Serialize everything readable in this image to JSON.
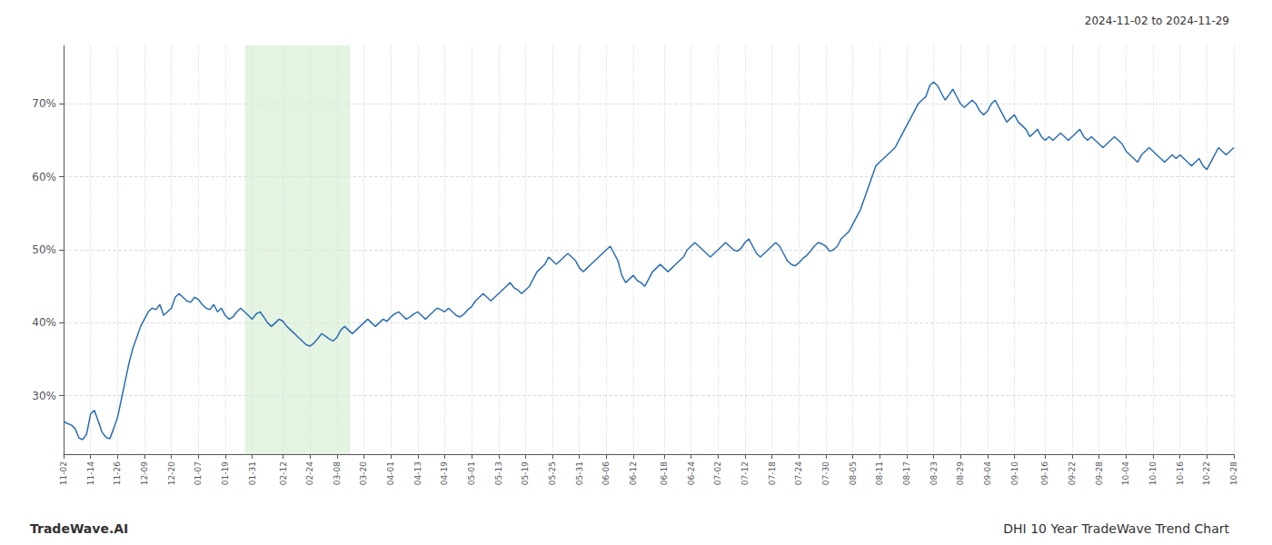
{
  "chart_data": {
    "type": "line",
    "title": "DHI 10 Year TradeWave Trend Chart",
    "subtitle": "2024-11-02 to 2024-11-29",
    "annotations": [
      "TradeWave.AI"
    ],
    "color": "#2a6db5",
    "grid": true,
    "ylim": [
      22,
      78
    ],
    "yticks": [
      {
        "value": 30,
        "label": "30%"
      },
      {
        "value": 40,
        "label": "40%"
      },
      {
        "value": 50,
        "label": "50%"
      },
      {
        "value": 60,
        "label": "60%"
      },
      {
        "value": 70,
        "label": "70%"
      }
    ],
    "highlight": {
      "x_start": 47.12,
      "x_end": 74.48,
      "color": "#d6ecd2"
    },
    "categories": [
      "11-02",
      null,
      null,
      null,
      null,
      null,
      null,
      "11-14",
      null,
      null,
      null,
      null,
      null,
      null,
      "11-26",
      null,
      null,
      null,
      null,
      null,
      null,
      "12-09",
      null,
      null,
      null,
      null,
      null,
      null,
      "12-20",
      null,
      null,
      null,
      null,
      null,
      null,
      "01-07",
      null,
      null,
      null,
      null,
      null,
      null,
      "01-19",
      null,
      null,
      null,
      null,
      null,
      null,
      "01-31",
      null,
      null,
      null,
      null,
      null,
      null,
      null,
      "02-12",
      null,
      null,
      null,
      null,
      null,
      null,
      "02-24",
      null,
      null,
      null,
      null,
      null,
      null,
      "03-08",
      null,
      null,
      null,
      null,
      null,
      null,
      "03-20",
      null,
      null,
      null,
      null,
      null,
      null,
      "04-01",
      null,
      null,
      null,
      null,
      null,
      null,
      "04-13",
      null,
      null,
      null,
      null,
      null,
      null,
      "04-19",
      null,
      null,
      null,
      null,
      null,
      null,
      "05-01",
      null,
      null,
      null,
      null,
      null,
      null,
      "05-13",
      null,
      null,
      null,
      null,
      null,
      null,
      "05-19",
      null,
      null,
      null,
      null,
      null,
      null,
      "05-25",
      null,
      null,
      null,
      null,
      null,
      null,
      "05-31",
      null,
      null,
      null,
      null,
      null,
      null,
      "06-06",
      null,
      null,
      null,
      null,
      null,
      null,
      "06-12",
      null,
      null,
      null,
      null,
      null,
      null,
      null,
      "06-18",
      null,
      null,
      null,
      null,
      null,
      null,
      "06-24",
      null,
      null,
      null,
      null,
      null,
      null,
      "07-02",
      null,
      null,
      null,
      null,
      null,
      null,
      "07-12",
      null,
      null,
      null,
      null,
      null,
      null,
      "07-18",
      null,
      null,
      null,
      null,
      null,
      null,
      "07-24",
      null,
      null,
      null,
      null,
      null,
      null,
      "07-30",
      null,
      null,
      null,
      null,
      null,
      null,
      "08-05",
      null,
      null,
      null,
      null,
      null,
      null,
      "08-11",
      null,
      null,
      null,
      null,
      null,
      null,
      "08-17",
      null,
      null,
      null,
      null,
      null,
      null,
      "08-23",
      null,
      null,
      null,
      null,
      null,
      null,
      "08-29",
      null,
      null,
      null,
      null,
      null,
      null,
      "09-04",
      null,
      null,
      null,
      null,
      null,
      null,
      "09-10",
      null,
      null,
      null,
      null,
      null,
      null,
      null,
      "09-16",
      null,
      null,
      null,
      null,
      null,
      null,
      "09-22",
      null,
      null,
      null,
      null,
      null,
      null,
      "09-28",
      null,
      null,
      null,
      null,
      null,
      null,
      "10-04",
      null,
      null,
      null,
      null,
      null,
      null,
      "10-10",
      null,
      null,
      null,
      null,
      null,
      null,
      "10-16",
      null,
      null,
      null,
      null,
      null,
      null,
      "10-22",
      null,
      null,
      null,
      null,
      null,
      null,
      "10-28"
    ],
    "values": [
      26.5,
      26.2,
      26.0,
      25.5,
      24.2,
      24.0,
      24.8,
      27.5,
      28.0,
      26.5,
      25.0,
      24.3,
      24.1,
      25.5,
      27.0,
      29.5,
      32.0,
      34.5,
      36.5,
      38.0,
      39.5,
      40.5,
      41.5,
      42.0,
      41.8,
      42.5,
      41.0,
      41.5,
      42.0,
      43.5,
      44.0,
      43.5,
      43.0,
      42.8,
      43.5,
      43.2,
      42.5,
      42.0,
      41.8,
      42.5,
      41.5,
      42.0,
      41.0,
      40.5,
      40.8,
      41.5,
      42.0,
      41.5,
      41.0,
      40.5,
      41.2,
      41.5,
      40.8,
      40.0,
      39.5,
      40.0,
      40.5,
      40.2,
      39.5,
      39.0,
      38.5,
      38.0,
      37.5,
      37.0,
      36.8,
      37.2,
      37.8,
      38.5,
      38.2,
      37.8,
      37.5,
      38.0,
      39.0,
      39.5,
      39.0,
      38.5,
      39.0,
      39.5,
      40.0,
      40.5,
      40.0,
      39.5,
      40.0,
      40.5,
      40.2,
      40.8,
      41.2,
      41.5,
      41.0,
      40.5,
      40.8,
      41.2,
      41.5,
      41.0,
      40.5,
      41.0,
      41.5,
      42.0,
      41.8,
      41.5,
      42.0,
      41.5,
      41.0,
      40.8,
      41.2,
      41.8,
      42.2,
      43.0,
      43.5,
      44.0,
      43.5,
      43.0,
      43.5,
      44.0,
      44.5,
      45.0,
      45.5,
      44.8,
      44.5,
      44.0,
      44.5,
      45.0,
      46.0,
      47.0,
      47.5,
      48.0,
      49.0,
      48.5,
      48.0,
      48.5,
      49.0,
      49.5,
      49.0,
      48.5,
      47.5,
      47.0,
      47.5,
      48.0,
      48.5,
      49.0,
      49.5,
      50.0,
      50.5,
      49.5,
      48.5,
      46.5,
      45.5,
      46.0,
      46.5,
      45.8,
      45.5,
      45.0,
      46.0,
      47.0,
      47.5,
      48.0,
      47.5,
      47.0,
      47.5,
      48.0,
      48.5,
      49.0,
      50.0,
      50.5,
      51.0,
      50.5,
      50.0,
      49.5,
      49.0,
      49.5,
      50.0,
      50.5,
      51.0,
      50.5,
      50.0,
      49.8,
      50.2,
      51.0,
      51.5,
      50.5,
      49.5,
      49.0,
      49.5,
      50.0,
      50.5,
      51.0,
      50.5,
      49.5,
      48.5,
      48.0,
      47.8,
      48.2,
      48.8,
      49.2,
      49.8,
      50.5,
      51.0,
      50.8,
      50.5,
      49.8,
      50.0,
      50.5,
      51.5,
      52.0,
      52.5,
      53.5,
      54.5,
      55.5,
      57.0,
      58.5,
      60.0,
      61.5,
      62.0,
      62.5,
      63.0,
      63.5,
      64.0,
      65.0,
      66.0,
      67.0,
      68.0,
      69.0,
      70.0,
      70.5,
      71.0,
      72.5,
      73.0,
      72.5,
      71.5,
      70.5,
      71.2,
      72.0,
      71.0,
      70.0,
      69.5,
      70.0,
      70.5,
      70.0,
      69.0,
      68.5,
      69.0,
      70.0,
      70.5,
      69.5,
      68.5,
      67.5,
      68.0,
      68.5,
      67.5,
      67.0,
      66.5,
      65.5,
      66.0,
      66.5,
      65.5,
      65.0,
      65.5,
      65.0,
      65.5,
      66.0,
      65.5,
      65.0,
      65.5,
      66.0,
      66.5,
      65.5,
      65.0,
      65.5,
      65.0,
      64.5,
      64.0,
      64.5,
      65.0,
      65.5,
      65.0,
      64.5,
      63.5,
      63.0,
      62.5,
      62.0,
      63.0,
      63.5,
      64.0,
      63.5,
      63.0,
      62.5,
      62.0,
      62.5,
      63.0,
      62.5,
      63.0,
      62.5,
      62.0,
      61.5,
      62.0,
      62.5,
      61.5,
      61.0,
      62.0,
      63.0,
      64.0,
      63.5,
      63.0,
      63.5,
      64.0
    ]
  }
}
